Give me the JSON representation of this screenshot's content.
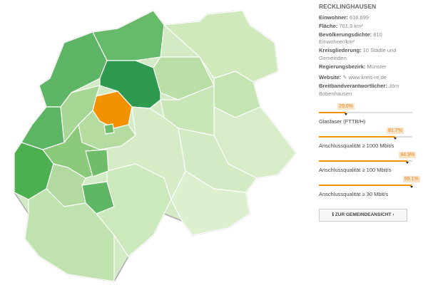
{
  "panel": {
    "title": "RECKLINGHAUSEN",
    "facts": [
      {
        "label": "Einwohner:",
        "value": "616.699"
      },
      {
        "label": "Fläche:",
        "value": "761,3 km²"
      },
      {
        "label": "Bevölkerungsdichte:",
        "value": "810 Einwohner/km²"
      },
      {
        "label": "Kreisgliederung:",
        "value": "10 Städte und Gemeinden"
      },
      {
        "label": "Regierungsbezirk:",
        "value": "Münster"
      }
    ],
    "website": {
      "label": "Website:",
      "value": "www.kreis-re.de"
    },
    "contact": {
      "label": "Breitbandverantwortlicher:",
      "value": "Jörn Bobenhausen"
    },
    "xlim": [
      0,
      100
    ],
    "bars": [
      {
        "value": 29,
        "value_label": "29.0%",
        "name": "Glasfaser (FTTB/H)"
      },
      {
        "value": 81.7,
        "value_label": "81.7%",
        "name": "Anschlussqualität ≥ 1000 Mbit/s"
      },
      {
        "value": 94.9,
        "value_label": "94.9%",
        "name": "Anschlussqualität ≥ 100 Mbit/s"
      },
      {
        "value": 99.1,
        "value_label": "99.1%",
        "name": "Anschlussqualität ≥ 30 Mbit/s"
      }
    ],
    "button": "ZUR GEMEINDEANSICHT"
  }
}
